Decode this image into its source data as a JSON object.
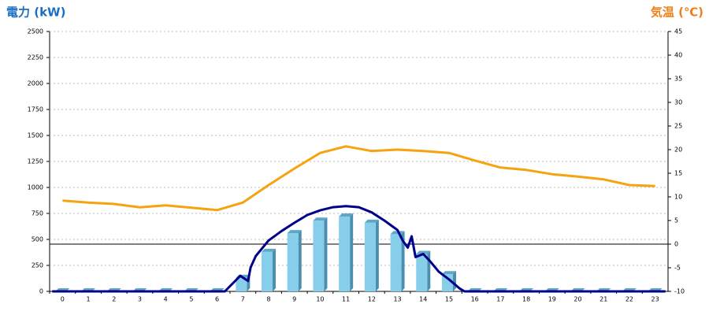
{
  "chart_data": {
    "type": "bar",
    "y_title": "電力 (kW)",
    "y2_title": "気温 (℃)",
    "categories": [
      "0",
      "1",
      "2",
      "3",
      "4",
      "5",
      "6",
      "7",
      "8",
      "9",
      "10",
      "11",
      "12",
      "13",
      "14",
      "15",
      "16",
      "17",
      "18",
      "19",
      "20",
      "21",
      "22",
      "23"
    ],
    "ylim": [
      0,
      2500
    ],
    "yticks": [
      0,
      250,
      500,
      750,
      1000,
      1250,
      1500,
      1750,
      2000,
      2250,
      2500
    ],
    "y2lim": [
      -10,
      45
    ],
    "y2ticks": [
      -10,
      -5,
      0,
      5,
      10,
      15,
      20,
      25,
      30,
      35,
      40,
      45
    ],
    "grid": true,
    "series": [
      {
        "type": "bar",
        "color": "#87ceeb",
        "values": [
          0,
          0,
          0,
          0,
          0,
          0,
          0,
          130,
          380,
          560,
          680,
          720,
          660,
          550,
          360,
          165,
          0,
          0,
          0,
          0,
          0,
          0,
          0,
          0
        ]
      },
      {
        "type": "line",
        "color": "#00008b",
        "x": [
          -0.4,
          6.3,
          6.9,
          7.2,
          7.3,
          7.5,
          8,
          8.5,
          9,
          9.5,
          10,
          10.5,
          11,
          11.5,
          12,
          12.5,
          13,
          13.2,
          13.4,
          13.55,
          13.7,
          14,
          14.3,
          14.6,
          15,
          15.4,
          15.6,
          23.4
        ],
        "values": [
          0,
          0,
          150,
          100,
          230,
          340,
          490,
          580,
          660,
          735,
          780,
          810,
          820,
          810,
          760,
          680,
          590,
          490,
          420,
          530,
          330,
          360,
          280,
          190,
          115,
          30,
          0,
          0
        ]
      },
      {
        "type": "line",
        "axis": "y2",
        "color": "#f5a30f",
        "values": [
          9.2,
          8.8,
          8.5,
          7.8,
          8.2,
          7.7,
          7.2,
          8.8,
          12.5,
          16,
          19.3,
          20.7,
          19.7,
          20,
          19.7,
          19.3,
          17.7,
          16.2,
          15.7,
          14.8,
          14.3,
          13.7,
          12.5,
          12.3
        ]
      }
    ]
  }
}
